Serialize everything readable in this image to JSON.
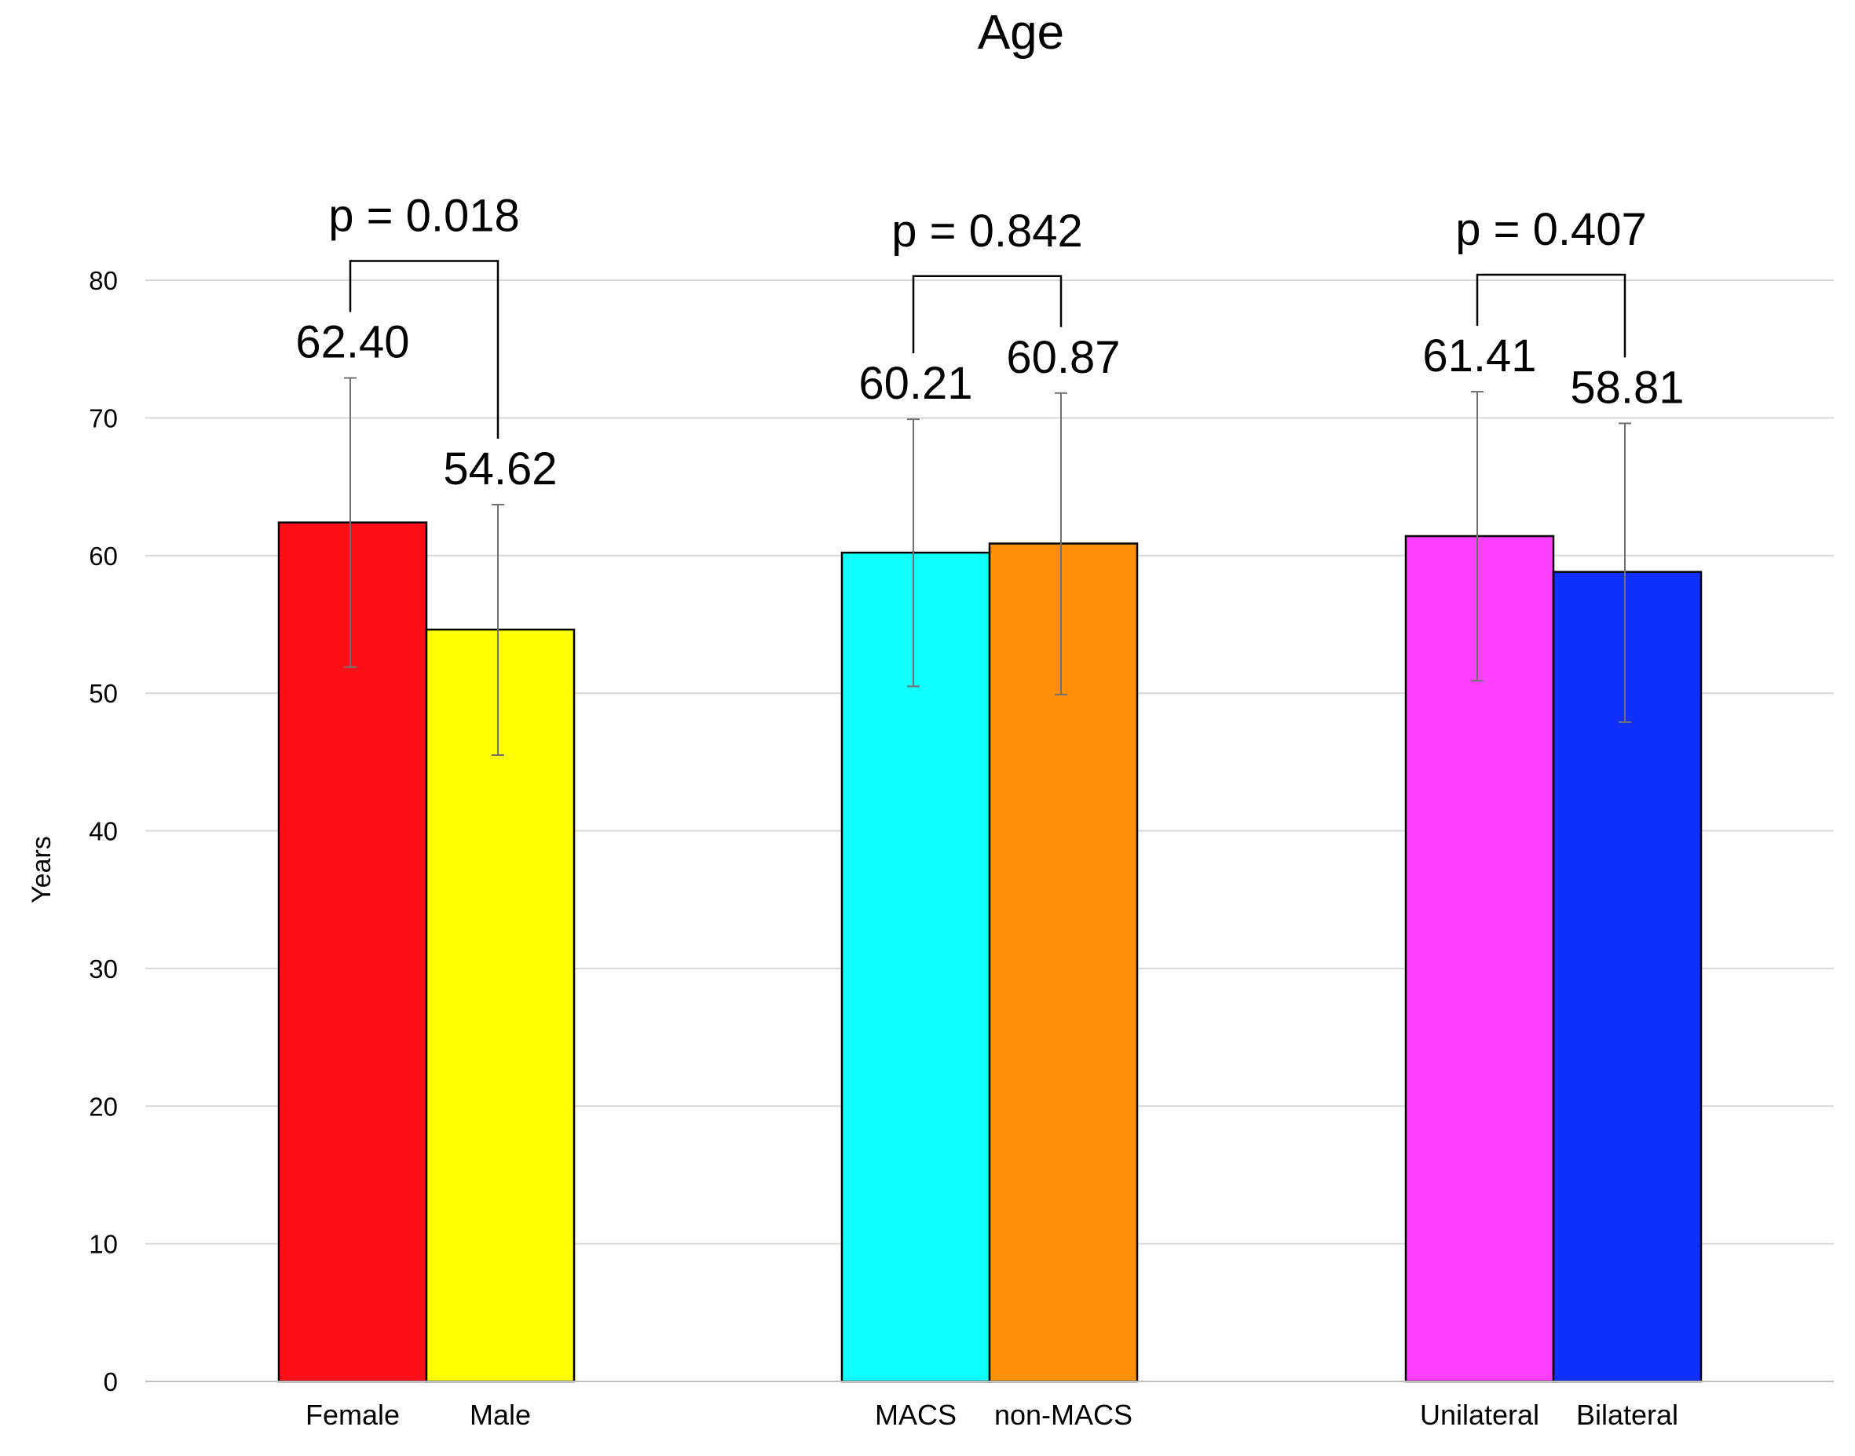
{
  "chart_data": {
    "type": "bar",
    "title": "Age",
    "xlabel": "",
    "ylabel": "Years",
    "ylim": [
      0,
      80
    ],
    "yticks": [
      0,
      10,
      20,
      30,
      40,
      50,
      60,
      70,
      80
    ],
    "grid": true,
    "legend": "none",
    "groups": [
      {
        "p_value_label": "p = 0.018",
        "bars": [
          {
            "category": "Female",
            "value": 62.4,
            "value_label": "62.40",
            "error_low": 51.9,
            "error_high": 72.9,
            "color": "#ff1018"
          },
          {
            "category": "Male",
            "value": 54.62,
            "value_label": "54.62",
            "error_low": 45.5,
            "error_high": 63.7,
            "color": "#ffff00"
          }
        ]
      },
      {
        "p_value_label": "p = 0.842",
        "bars": [
          {
            "category": "MACS",
            "value": 60.21,
            "value_label": "60.21",
            "error_low": 50.5,
            "error_high": 69.9,
            "color": "#10ffff"
          },
          {
            "category": "non-MACS",
            "value": 60.87,
            "value_label": "60.87",
            "error_low": 49.9,
            "error_high": 71.8,
            "color": "#ff9108"
          }
        ]
      },
      {
        "p_value_label": "p = 0.407",
        "bars": [
          {
            "category": "Unilateral",
            "value": 61.41,
            "value_label": "61.41",
            "error_low": 50.9,
            "error_high": 71.9,
            "color": "#ff40ff"
          },
          {
            "category": "Bilateral",
            "value": 58.81,
            "value_label": "58.81",
            "error_low": 47.9,
            "error_high": 69.6,
            "color": "#1030ff"
          }
        ]
      }
    ]
  }
}
